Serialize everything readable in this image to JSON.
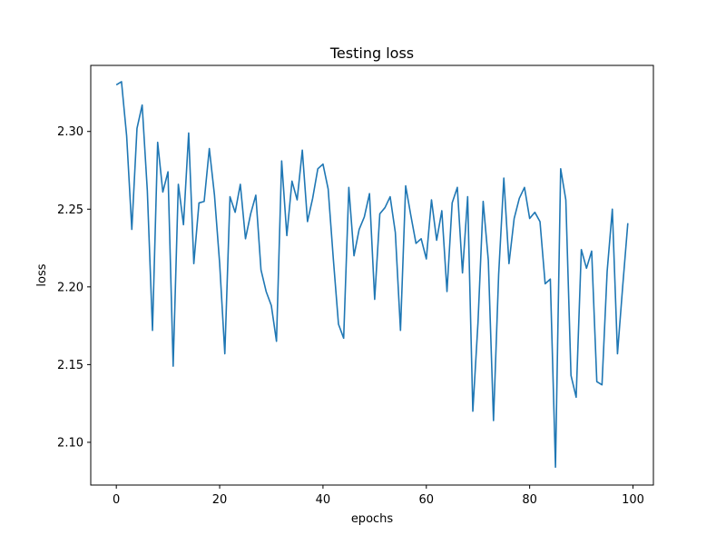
{
  "chart_data": {
    "type": "line",
    "title": "Testing loss",
    "xlabel": "epochs",
    "ylabel": "loss",
    "xlim": [
      -4.95,
      103.95
    ],
    "ylim": [
      2.0725,
      2.3425
    ],
    "xticks": [
      0,
      20,
      40,
      60,
      80,
      100
    ],
    "yticks": [
      2.1,
      2.15,
      2.2,
      2.25,
      2.3
    ],
    "xtick_labels": [
      "0",
      "20",
      "40",
      "60",
      "80",
      "100"
    ],
    "ytick_labels": [
      "2.10",
      "2.15",
      "2.20",
      "2.25",
      "2.30"
    ],
    "grid": false,
    "series": [
      {
        "color": "#1f77b4",
        "x": [
          0,
          1,
          2,
          3,
          4,
          5,
          6,
          7,
          8,
          9,
          10,
          11,
          12,
          13,
          14,
          15,
          16,
          17,
          18,
          19,
          20,
          21,
          22,
          23,
          24,
          25,
          26,
          27,
          28,
          29,
          30,
          31,
          32,
          33,
          34,
          35,
          36,
          37,
          38,
          39,
          40,
          41,
          42,
          43,
          44,
          45,
          46,
          47,
          48,
          49,
          50,
          51,
          52,
          53,
          54,
          55,
          56,
          57,
          58,
          59,
          60,
          61,
          62,
          63,
          64,
          65,
          66,
          67,
          68,
          69,
          70,
          71,
          72,
          73,
          74,
          75,
          76,
          77,
          78,
          79,
          80,
          81,
          82,
          83,
          84,
          85,
          86,
          87,
          88,
          89,
          90,
          91,
          92,
          93,
          94,
          95,
          96,
          97,
          98,
          99
        ],
        "y": [
          2.33,
          2.332,
          2.297,
          2.237,
          2.302,
          2.317,
          2.262,
          2.172,
          2.293,
          2.261,
          2.274,
          2.149,
          2.266,
          2.24,
          2.299,
          2.215,
          2.254,
          2.255,
          2.289,
          2.259,
          2.215,
          2.157,
          2.258,
          2.248,
          2.266,
          2.231,
          2.247,
          2.259,
          2.211,
          2.197,
          2.188,
          2.165,
          2.281,
          2.233,
          2.268,
          2.256,
          2.288,
          2.242,
          2.257,
          2.276,
          2.279,
          2.263,
          2.218,
          2.176,
          2.167,
          2.264,
          2.22,
          2.237,
          2.245,
          2.26,
          2.192,
          2.247,
          2.251,
          2.258,
          2.235,
          2.172,
          2.265,
          2.246,
          2.228,
          2.231,
          2.218,
          2.256,
          2.23,
          2.249,
          2.197,
          2.254,
          2.264,
          2.209,
          2.258,
          2.12,
          2.177,
          2.255,
          2.217,
          2.114,
          2.208,
          2.27,
          2.215,
          2.244,
          2.257,
          2.264,
          2.244,
          2.248,
          2.242,
          2.202,
          2.205,
          2.084,
          2.276,
          2.256,
          2.143,
          2.129,
          2.224,
          2.212,
          2.223,
          2.139,
          2.137,
          2.21,
          2.25,
          2.157,
          2.2,
          2.241
        ]
      }
    ]
  }
}
